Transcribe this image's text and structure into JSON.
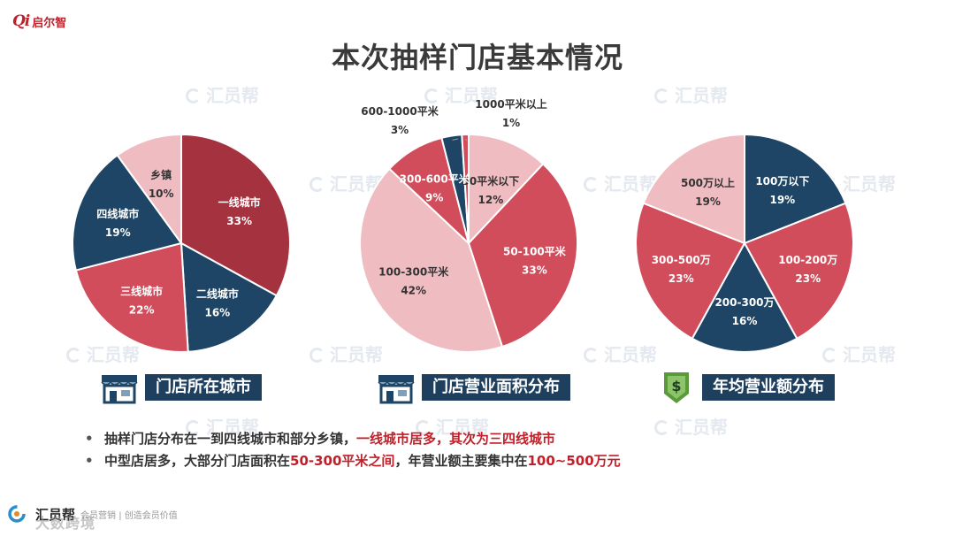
{
  "logo": {
    "mark": "Qi",
    "text": "启尔智"
  },
  "page_title": "本次抽样门店基本情况",
  "watermark": "汇员帮",
  "chart_data": [
    {
      "type": "pie",
      "caption": "门店所在城市",
      "slices": [
        {
          "label": "一线城市",
          "value": 33,
          "display": "33%",
          "color": "#a5333f"
        },
        {
          "label": "二线城市",
          "value": 16,
          "display": "16%",
          "color": "#1e4565"
        },
        {
          "label": "三线城市",
          "value": 22,
          "display": "22%",
          "color": "#d14d5b"
        },
        {
          "label": "四线城市",
          "value": 19,
          "display": "19%",
          "color": "#1e4565"
        },
        {
          "label": "乡镇",
          "value": 10,
          "display": "10%",
          "color": "#efbcc2"
        }
      ]
    },
    {
      "type": "pie",
      "caption": "门店营业面积分布",
      "slices": [
        {
          "label": "50平米以下",
          "value": 12,
          "display": "12%",
          "color": "#efbcc2"
        },
        {
          "label": "50-100平米",
          "value": 33,
          "display": "33%",
          "color": "#d14d5b"
        },
        {
          "label": "100-300平米",
          "value": 42,
          "display": "42%",
          "color": "#efbcc2"
        },
        {
          "label": "300-600平米",
          "value": 9,
          "display": "9%",
          "color": "#d14d5b"
        },
        {
          "label": "600-1000平米",
          "value": 3,
          "display": "3%",
          "color": "#1e4565"
        },
        {
          "label": "1000平米以上",
          "value": 1,
          "display": "1%",
          "color": "#d14d5b"
        }
      ]
    },
    {
      "type": "pie",
      "caption": "年均营业额分布",
      "slices": [
        {
          "label": "100万以下",
          "value": 19,
          "display": "19%",
          "color": "#1e4565"
        },
        {
          "label": "100-200万",
          "value": 23,
          "display": "23%",
          "color": "#d14d5b"
        },
        {
          "label": "200-300万",
          "value": 16,
          "display": "16%",
          "color": "#1e4565"
        },
        {
          "label": "300-500万",
          "value": 23,
          "display": "23%",
          "color": "#d14d5b"
        },
        {
          "label": "500万以上",
          "value": 19,
          "display": "19%",
          "color": "#efbcc2"
        }
      ]
    }
  ],
  "bullets": [
    {
      "marker": "•",
      "text": "抽样门店分布在一到四线城市和部分乡镇，",
      "highlight": "一线城市居多，其次为三四线城市",
      "tail": ""
    },
    {
      "marker": "•",
      "text": "中型店居多，大部分门店面积在",
      "highlight": "50-300平米之间",
      "tail": "，年营业额主要集中在",
      "highlight2": "100~500万元"
    }
  ],
  "footer": {
    "logo": "汇员帮",
    "slogan": "会员营销 | 创造会员价值",
    "watermark": "大数跨境"
  },
  "colors": {
    "navy": "#1e3f5e",
    "red": "#c0202a"
  },
  "icons": {
    "caption1": "storefront-icon",
    "caption2": "storefront-icon",
    "caption3": "money-badge-icon"
  }
}
